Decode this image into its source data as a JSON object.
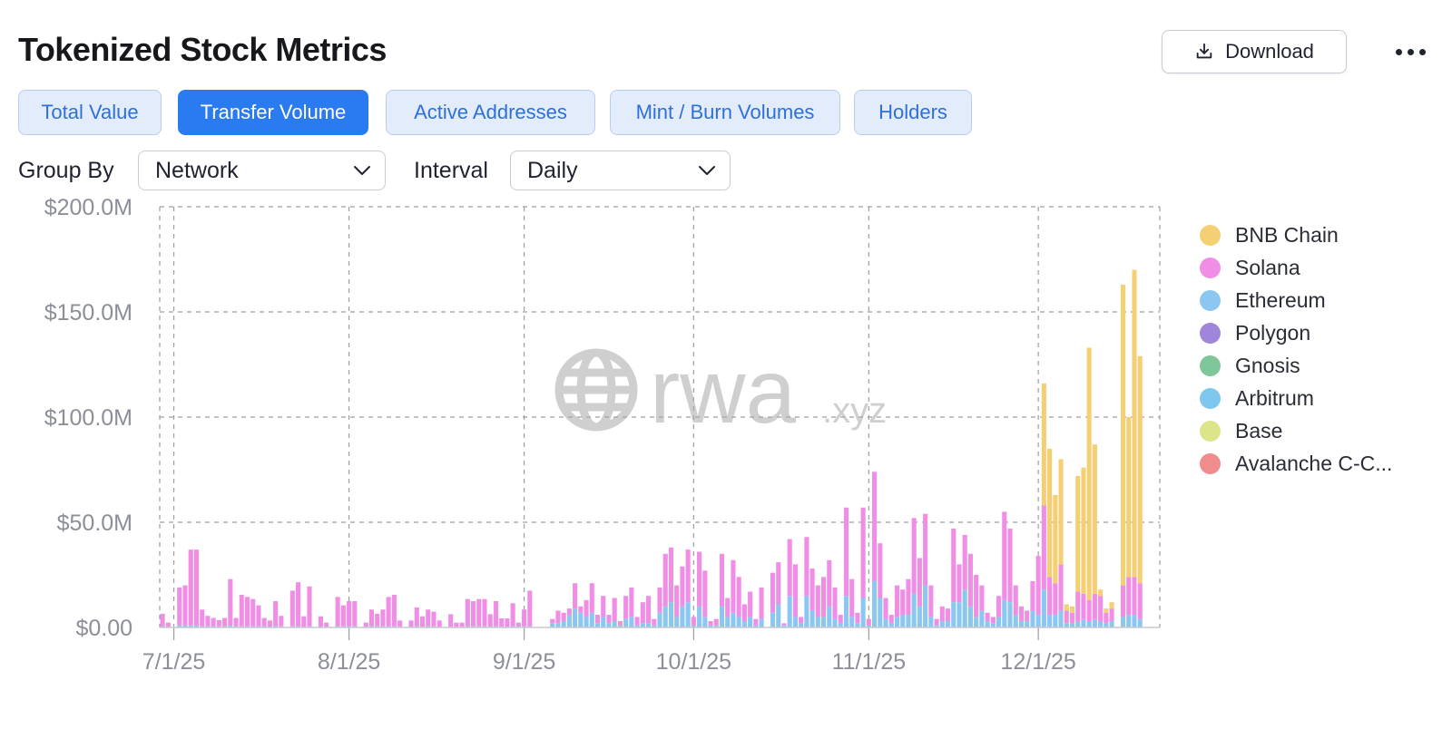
{
  "title": "Tokenized Stock Metrics",
  "toolbar": {
    "download_label": "Download",
    "icons": {
      "download": "download-icon",
      "more": "more-horizontal-icon"
    }
  },
  "tabs": [
    {
      "label": "Total Value",
      "active": false
    },
    {
      "label": "Transfer Volume",
      "active": true
    },
    {
      "label": "Active Addresses",
      "active": false
    },
    {
      "label": "Mint / Burn Volumes",
      "active": false
    },
    {
      "label": "Holders",
      "active": false
    }
  ],
  "controls": {
    "group_by_label": "Group By",
    "group_by_value": "Network",
    "interval_label": "Interval",
    "interval_value": "Daily"
  },
  "watermark": {
    "text": "rwa",
    "suffix": ".xyz"
  },
  "colors": {
    "accent": "#2b7bf0",
    "BNB Chain": "#f5cf74",
    "Solana": "#f08ee6",
    "Ethereum": "#8cc7f2",
    "Polygon": "#9f86db",
    "Gnosis": "#7fc79a",
    "Arbitrum": "#7ec8ef",
    "Base": "#dde58a",
    "Avalanche C-Chain": "#ef8c8c"
  },
  "chart_data": {
    "type": "bar",
    "stacked": true,
    "title": "",
    "xlabel": "",
    "ylabel": "",
    "x_start": "2025-06-29",
    "x_end": "2025-12-22",
    "x_ticks": [
      "7/1/25",
      "8/1/25",
      "9/1/25",
      "10/1/25",
      "11/1/25",
      "12/1/25"
    ],
    "x_tick_dates": [
      "2025-07-01",
      "2025-08-01",
      "2025-09-01",
      "2025-10-01",
      "2025-11-01",
      "2025-12-01"
    ],
    "y_ticks": [
      "$0.00",
      "$50.0M",
      "$100.0M",
      "$150.0M",
      "$200.0M"
    ],
    "y_unit": "USD millions",
    "ylim": [
      0,
      200
    ],
    "grid": true,
    "legend_position": "right",
    "legend": [
      "BNB Chain",
      "Solana",
      "Ethereum",
      "Polygon",
      "Gnosis",
      "Arbitrum",
      "Base",
      "Avalanche C-C..."
    ],
    "series_order": [
      "Ethereum",
      "Solana",
      "BNB Chain"
    ],
    "bars": [
      {
        "date": "2025-06-29",
        "Solana": 6,
        "Ethereum": 0.5
      },
      {
        "date": "2025-06-30",
        "Solana": 2,
        "Ethereum": 0.3
      },
      {
        "date": "2025-07-02",
        "Solana": 18,
        "Ethereum": 1
      },
      {
        "date": "2025-07-03",
        "Solana": 19,
        "Ethereum": 1
      },
      {
        "date": "2025-07-04",
        "Solana": 36,
        "Ethereum": 1
      },
      {
        "date": "2025-07-05",
        "Solana": 36,
        "Ethereum": 1
      },
      {
        "date": "2025-07-06",
        "Solana": 8,
        "Ethereum": 0.5
      },
      {
        "date": "2025-07-07",
        "Solana": 5,
        "Ethereum": 0.5
      },
      {
        "date": "2025-07-08",
        "Solana": 4,
        "Ethereum": 0.5
      },
      {
        "date": "2025-07-09",
        "Solana": 3,
        "Ethereum": 0.5
      },
      {
        "date": "2025-07-10",
        "Solana": 4,
        "Ethereum": 0.5
      },
      {
        "date": "2025-07-11",
        "Solana": 22,
        "Ethereum": 1
      },
      {
        "date": "2025-07-12",
        "Solana": 4,
        "Ethereum": 0.5
      },
      {
        "date": "2025-07-13",
        "Solana": 15,
        "Ethereum": 0.5
      },
      {
        "date": "2025-07-14",
        "Solana": 14,
        "Ethereum": 0.5
      },
      {
        "date": "2025-07-15",
        "Solana": 13,
        "Ethereum": 0.5
      },
      {
        "date": "2025-07-16",
        "Solana": 10,
        "Ethereum": 0.5
      },
      {
        "date": "2025-07-17",
        "Solana": 4,
        "Ethereum": 0.5
      },
      {
        "date": "2025-07-18",
        "Solana": 3,
        "Ethereum": 0.3
      },
      {
        "date": "2025-07-19",
        "Solana": 12,
        "Ethereum": 0.5
      },
      {
        "date": "2025-07-20",
        "Solana": 5,
        "Ethereum": 0.5
      },
      {
        "date": "2025-07-22",
        "Solana": 17,
        "Ethereum": 0.5
      },
      {
        "date": "2025-07-23",
        "Solana": 21,
        "Ethereum": 0.5
      },
      {
        "date": "2025-07-24",
        "Solana": 5,
        "Ethereum": 0.3
      },
      {
        "date": "2025-07-25",
        "Solana": 19,
        "Ethereum": 0.5
      },
      {
        "date": "2025-07-27",
        "Solana": 5,
        "Ethereum": 0.3
      },
      {
        "date": "2025-07-28",
        "Solana": 2,
        "Ethereum": 0.3
      },
      {
        "date": "2025-07-30",
        "Solana": 14,
        "Ethereum": 0.5
      },
      {
        "date": "2025-07-31",
        "Solana": 10,
        "Ethereum": 0.5
      },
      {
        "date": "2025-08-01",
        "Solana": 12,
        "Ethereum": 0.5
      },
      {
        "date": "2025-08-02",
        "Solana": 12,
        "Ethereum": 0.5
      },
      {
        "date": "2025-08-04",
        "Solana": 2,
        "Ethereum": 0.3
      },
      {
        "date": "2025-08-05",
        "Solana": 8,
        "Ethereum": 0.5
      },
      {
        "date": "2025-08-06",
        "Solana": 6,
        "Ethereum": 0.5
      },
      {
        "date": "2025-08-07",
        "Solana": 8,
        "Ethereum": 0.5
      },
      {
        "date": "2025-08-08",
        "Solana": 14,
        "Ethereum": 0.5
      },
      {
        "date": "2025-08-09",
        "Solana": 15,
        "Ethereum": 0.5
      },
      {
        "date": "2025-08-10",
        "Solana": 3,
        "Ethereum": 0.3
      },
      {
        "date": "2025-08-12",
        "Solana": 3,
        "Ethereum": 0.3
      },
      {
        "date": "2025-08-13",
        "Solana": 9,
        "Ethereum": 0.5
      },
      {
        "date": "2025-08-14",
        "Solana": 5,
        "Ethereum": 0.3
      },
      {
        "date": "2025-08-15",
        "Solana": 8,
        "Ethereum": 0.5
      },
      {
        "date": "2025-08-16",
        "Solana": 7,
        "Ethereum": 0.5
      },
      {
        "date": "2025-08-17",
        "Solana": 3,
        "Ethereum": 0.3
      },
      {
        "date": "2025-08-19",
        "Solana": 6,
        "Ethereum": 0.3
      },
      {
        "date": "2025-08-20",
        "Solana": 2,
        "Ethereum": 0.3
      },
      {
        "date": "2025-08-21",
        "Solana": 2,
        "Ethereum": 0.3
      },
      {
        "date": "2025-08-22",
        "Solana": 13,
        "Ethereum": 0.5
      },
      {
        "date": "2025-08-23",
        "Solana": 12,
        "Ethereum": 0.5
      },
      {
        "date": "2025-08-24",
        "Solana": 13,
        "Ethereum": 0.5
      },
      {
        "date": "2025-08-25",
        "Solana": 13,
        "Ethereum": 0.5
      },
      {
        "date": "2025-08-26",
        "Solana": 6,
        "Ethereum": 0.3
      },
      {
        "date": "2025-08-27",
        "Solana": 12,
        "Ethereum": 0.5
      },
      {
        "date": "2025-08-28",
        "Solana": 4,
        "Ethereum": 0.3
      },
      {
        "date": "2025-08-29",
        "Solana": 4,
        "Ethereum": 0.3
      },
      {
        "date": "2025-08-30",
        "Solana": 11,
        "Ethereum": 0.5
      },
      {
        "date": "2025-08-31",
        "Solana": 2,
        "Ethereum": 0.3
      },
      {
        "date": "2025-09-01",
        "Solana": 8,
        "Ethereum": 0.5
      },
      {
        "date": "2025-09-02",
        "Solana": 17,
        "Ethereum": 0.5
      },
      {
        "date": "2025-09-06",
        "Solana": 2,
        "Ethereum": 2
      },
      {
        "date": "2025-09-07",
        "Solana": 6,
        "Ethereum": 2
      },
      {
        "date": "2025-09-08",
        "Solana": 4,
        "Ethereum": 3
      },
      {
        "date": "2025-09-09",
        "Solana": 3,
        "Ethereum": 6
      },
      {
        "date": "2025-09-10",
        "Solana": 12,
        "Ethereum": 9
      },
      {
        "date": "2025-09-11",
        "Solana": 3,
        "Ethereum": 7
      },
      {
        "date": "2025-09-12",
        "Solana": 8,
        "Ethereum": 5
      },
      {
        "date": "2025-09-13",
        "Solana": 14,
        "Ethereum": 7
      },
      {
        "date": "2025-09-14",
        "Solana": 4,
        "Ethereum": 2
      },
      {
        "date": "2025-09-15",
        "Solana": 10,
        "Ethereum": 5
      },
      {
        "date": "2025-09-16",
        "Solana": 4,
        "Ethereum": 2
      },
      {
        "date": "2025-09-17",
        "Solana": 11,
        "Ethereum": 3
      },
      {
        "date": "2025-09-18",
        "Solana": 2,
        "Ethereum": 1
      },
      {
        "date": "2025-09-19",
        "Solana": 11,
        "Ethereum": 4
      },
      {
        "date": "2025-09-20",
        "Solana": 14,
        "Ethereum": 5
      },
      {
        "date": "2025-09-21",
        "Solana": 4,
        "Ethereum": 1
      },
      {
        "date": "2025-09-22",
        "Solana": 10,
        "Ethereum": 2
      },
      {
        "date": "2025-09-23",
        "Solana": 13,
        "Ethereum": 2
      },
      {
        "date": "2025-09-24",
        "Solana": 3,
        "Ethereum": 1
      },
      {
        "date": "2025-09-25",
        "Solana": 12,
        "Ethereum": 7
      },
      {
        "date": "2025-09-26",
        "Solana": 25,
        "Ethereum": 10
      },
      {
        "date": "2025-09-27",
        "Solana": 26,
        "Ethereum": 12
      },
      {
        "date": "2025-09-28",
        "Solana": 15,
        "Ethereum": 5
      },
      {
        "date": "2025-09-29",
        "Solana": 19,
        "Ethereum": 10
      },
      {
        "date": "2025-09-30",
        "Solana": 25,
        "Ethereum": 12
      },
      {
        "date": "2025-10-01",
        "Solana": 4,
        "Ethereum": 1
      },
      {
        "date": "2025-10-02",
        "Solana": 26,
        "Ethereum": 10
      },
      {
        "date": "2025-10-03",
        "Solana": 22,
        "Ethereum": 5
      },
      {
        "date": "2025-10-04",
        "Solana": 2,
        "Ethereum": 1
      },
      {
        "date": "2025-10-05",
        "Solana": 3,
        "Ethereum": 1
      },
      {
        "date": "2025-10-06",
        "Solana": 25,
        "Ethereum": 10
      },
      {
        "date": "2025-10-07",
        "Solana": 9,
        "Ethereum": 5
      },
      {
        "date": "2025-10-08",
        "Solana": 25,
        "Ethereum": 7
      },
      {
        "date": "2025-10-09",
        "Solana": 19,
        "Ethereum": 5
      },
      {
        "date": "2025-10-10",
        "Solana": 8,
        "Ethereum": 3
      },
      {
        "date": "2025-10-11",
        "Solana": 12,
        "Ethereum": 5
      },
      {
        "date": "2025-10-12",
        "Solana": 3,
        "Ethereum": 1
      },
      {
        "date": "2025-10-13",
        "Solana": 15,
        "Ethereum": 4
      },
      {
        "date": "2025-10-15",
        "Solana": 19,
        "Ethereum": 7
      },
      {
        "date": "2025-10-16",
        "Solana": 20,
        "Ethereum": 11
      },
      {
        "date": "2025-10-17",
        "Solana": 1,
        "Ethereum": 1
      },
      {
        "date": "2025-10-18",
        "Solana": 27,
        "Ethereum": 15
      },
      {
        "date": "2025-10-19",
        "Solana": 25,
        "Ethereum": 5
      },
      {
        "date": "2025-10-20",
        "Solana": 3,
        "Ethereum": 2
      },
      {
        "date": "2025-10-21",
        "Solana": 28,
        "Ethereum": 15
      },
      {
        "date": "2025-10-22",
        "Solana": 20,
        "Ethereum": 8
      },
      {
        "date": "2025-10-23",
        "Solana": 15,
        "Ethereum": 5
      },
      {
        "date": "2025-10-24",
        "Solana": 19,
        "Ethereum": 5
      },
      {
        "date": "2025-10-25",
        "Solana": 22,
        "Ethereum": 10
      },
      {
        "date": "2025-10-26",
        "Solana": 15,
        "Ethereum": 4
      },
      {
        "date": "2025-10-27",
        "Solana": 4,
        "Ethereum": 2
      },
      {
        "date": "2025-10-28",
        "Solana": 42,
        "Ethereum": 15
      },
      {
        "date": "2025-10-29",
        "Solana": 18,
        "Ethereum": 5
      },
      {
        "date": "2025-10-30",
        "Solana": 5,
        "Ethereum": 2
      },
      {
        "date": "2025-10-31",
        "Solana": 43,
        "Ethereum": 14
      },
      {
        "date": "2025-11-01",
        "Solana": 3,
        "Ethereum": 1
      },
      {
        "date": "2025-11-02",
        "Solana": 52,
        "Ethereum": 22
      },
      {
        "date": "2025-11-03",
        "Solana": 26,
        "Ethereum": 14
      },
      {
        "date": "2025-11-04",
        "Solana": 10,
        "Ethereum": 4
      },
      {
        "date": "2025-11-05",
        "Solana": 4,
        "Ethereum": 2
      },
      {
        "date": "2025-11-06",
        "Solana": 15,
        "Ethereum": 5
      },
      {
        "date": "2025-11-07",
        "Solana": 12,
        "Ethereum": 6
      },
      {
        "date": "2025-11-08",
        "Solana": 17,
        "Ethereum": 6
      },
      {
        "date": "2025-11-09",
        "Solana": 36,
        "Ethereum": 16
      },
      {
        "date": "2025-11-10",
        "Solana": 23,
        "Ethereum": 10
      },
      {
        "date": "2025-11-11",
        "Solana": 34,
        "Ethereum": 20
      },
      {
        "date": "2025-11-12",
        "Solana": 15,
        "Ethereum": 5
      },
      {
        "date": "2025-11-13",
        "Solana": 3,
        "Ethereum": 1
      },
      {
        "date": "2025-11-14",
        "Solana": 7,
        "Ethereum": 3
      },
      {
        "date": "2025-11-15",
        "Solana": 6,
        "Ethereum": 3
      },
      {
        "date": "2025-11-16",
        "Solana": 35,
        "Ethereum": 12
      },
      {
        "date": "2025-11-17",
        "Solana": 18,
        "Ethereum": 12
      },
      {
        "date": "2025-11-18",
        "Solana": 26,
        "Ethereum": 18
      },
      {
        "date": "2025-11-19",
        "Solana": 25,
        "Ethereum": 10
      },
      {
        "date": "2025-11-20",
        "Solana": 20,
        "Ethereum": 5
      },
      {
        "date": "2025-11-21",
        "Solana": 12,
        "Ethereum": 8
      },
      {
        "date": "2025-11-22",
        "Solana": 4,
        "Ethereum": 3
      },
      {
        "date": "2025-11-23",
        "Solana": 3,
        "Ethereum": 2
      },
      {
        "date": "2025-11-24",
        "Solana": 10,
        "Ethereum": 5
      },
      {
        "date": "2025-11-25",
        "Solana": 42,
        "Ethereum": 13
      },
      {
        "date": "2025-11-26",
        "Solana": 35,
        "Ethereum": 12
      },
      {
        "date": "2025-11-27",
        "Solana": 14,
        "Ethereum": 6
      },
      {
        "date": "2025-11-28",
        "Solana": 7,
        "Ethereum": 3
      },
      {
        "date": "2025-11-29",
        "Solana": 5,
        "Ethereum": 3
      },
      {
        "date": "2025-11-30",
        "Solana": 14,
        "Ethereum": 8
      },
      {
        "date": "2025-12-01",
        "Solana": 28,
        "Ethereum": 6
      },
      {
        "date": "2025-12-02",
        "Solana": 40,
        "Ethereum": 18,
        "BNB Chain": 58
      },
      {
        "date": "2025-12-03",
        "Solana": 18,
        "Ethereum": 6,
        "BNB Chain": 61
      },
      {
        "date": "2025-12-04",
        "Solana": 15,
        "Ethereum": 6,
        "BNB Chain": 42
      },
      {
        "date": "2025-12-05",
        "Solana": 22,
        "Ethereum": 8,
        "BNB Chain": 50
      },
      {
        "date": "2025-12-06",
        "Solana": 6,
        "Ethereum": 2,
        "BNB Chain": 3
      },
      {
        "date": "2025-12-07",
        "Solana": 5,
        "Ethereum": 2,
        "BNB Chain": 3
      },
      {
        "date": "2025-12-08",
        "Solana": 14,
        "Ethereum": 3,
        "BNB Chain": 55
      },
      {
        "date": "2025-12-09",
        "Solana": 12,
        "Ethereum": 4,
        "BNB Chain": 60
      },
      {
        "date": "2025-12-10",
        "Solana": 10,
        "Ethereum": 3,
        "BNB Chain": 120
      },
      {
        "date": "2025-12-11",
        "Solana": 12,
        "Ethereum": 4,
        "BNB Chain": 71
      },
      {
        "date": "2025-12-12",
        "Solana": 12,
        "Ethereum": 3,
        "BNB Chain": 3
      },
      {
        "date": "2025-12-13",
        "Solana": 5,
        "Ethereum": 2,
        "BNB Chain": 2
      },
      {
        "date": "2025-12-14",
        "Solana": 6,
        "Ethereum": 3,
        "BNB Chain": 3
      },
      {
        "date": "2025-12-16",
        "Solana": 15,
        "Ethereum": 5,
        "BNB Chain": 143
      },
      {
        "date": "2025-12-17",
        "Solana": 18,
        "Ethereum": 6,
        "BNB Chain": 76
      },
      {
        "date": "2025-12-18",
        "Solana": 18,
        "Ethereum": 6,
        "BNB Chain": 146
      },
      {
        "date": "2025-12-19",
        "Solana": 17,
        "Ethereum": 4,
        "BNB Chain": 108
      }
    ]
  }
}
